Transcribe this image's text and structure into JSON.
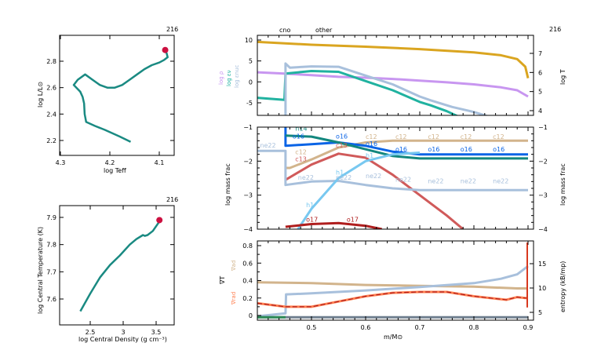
{
  "chart_data": [
    {
      "id": "hr",
      "type": "line",
      "title": "216",
      "xlabel": "log Teff",
      "ylabel": "log L/L_sun",
      "xlim": [
        4.3,
        4.05
      ],
      "ylim": [
        2.1,
        2.99
      ],
      "xticks": [
        "4.3",
        "4.2",
        "4.1"
      ],
      "xtick_values": [
        4.3,
        4.2,
        4.1
      ],
      "yticks": [
        "2.2",
        "2.4",
        "2.6",
        "2.8"
      ],
      "ytick_values": [
        2.2,
        2.4,
        2.6,
        2.8
      ],
      "color": "#1a8a82",
      "marker_color": "#cc1040",
      "series": [
        {
          "name": "track",
          "x": [
            4.158,
            4.18,
            4.21,
            4.23,
            4.248,
            4.251,
            4.252,
            4.255,
            4.26,
            4.273,
            4.265,
            4.25,
            4.235,
            4.22,
            4.205,
            4.19,
            4.175,
            4.16,
            4.145,
            4.13,
            4.115,
            4.1,
            4.09,
            4.083,
            4.085,
            4.088
          ],
          "y": [
            2.19,
            2.23,
            2.28,
            2.31,
            2.34,
            2.4,
            2.48,
            2.53,
            2.57,
            2.62,
            2.66,
            2.7,
            2.66,
            2.62,
            2.6,
            2.6,
            2.62,
            2.66,
            2.7,
            2.74,
            2.77,
            2.79,
            2.81,
            2.83,
            2.86,
            2.88
          ]
        }
      ],
      "marker": {
        "x": 4.088,
        "y": 2.885
      }
    },
    {
      "id": "center",
      "type": "line",
      "title": "216",
      "xlabel": "log Central Density (g cm^-3)",
      "ylabel": "log Central Temperature (K)",
      "xlim": [
        2.05,
        3.72
      ],
      "ylim": [
        7.51,
        7.94
      ],
      "xticks": [
        "2.5",
        "3",
        "3.5"
      ],
      "xtick_values": [
        2.5,
        3.0,
        3.5
      ],
      "yticks": [
        "7.6",
        "7.7",
        "7.8",
        "7.9"
      ],
      "ytick_values": [
        7.6,
        7.7,
        7.8,
        7.9
      ],
      "color": "#1a8a82",
      "marker_color": "#cc1040",
      "series": [
        {
          "name": "track",
          "x": [
            2.35,
            2.5,
            2.65,
            2.8,
            2.95,
            3.1,
            3.2,
            3.3,
            3.33,
            3.37,
            3.45,
            3.55
          ],
          "y": [
            7.555,
            7.62,
            7.68,
            7.725,
            7.76,
            7.8,
            7.82,
            7.835,
            7.832,
            7.835,
            7.85,
            7.885
          ]
        }
      ],
      "marker": {
        "x": 3.55,
        "y": 7.89
      }
    },
    {
      "id": "profile-top",
      "type": "line",
      "title": "216",
      "top_labels": [
        "cno",
        "other"
      ],
      "xlim": [
        0.4,
        0.9
      ],
      "ylim_left": [
        -8.2,
        11.2
      ],
      "ylim_right": [
        3.7,
        7.8
      ],
      "yticks_left": [
        "10",
        "5",
        "0",
        "-5"
      ],
      "ytick_values_left": [
        10,
        5,
        0,
        -5
      ],
      "yticks_right": [
        "7",
        "6",
        "5",
        "4"
      ],
      "ytick_values_right": [
        7,
        6,
        5,
        4
      ],
      "ylabels_left": [
        "log ρ",
        "log ε_ν",
        "log ε_nuc"
      ],
      "ylabel_right": "log T",
      "series": [
        {
          "name": "log T",
          "axis": "right",
          "color": "#daa520",
          "x": [
            0.4,
            0.5,
            0.6,
            0.7,
            0.8,
            0.85,
            0.88,
            0.895,
            0.9
          ],
          "y": [
            7.6,
            7.45,
            7.35,
            7.22,
            7.05,
            6.9,
            6.7,
            6.3,
            5.7
          ]
        },
        {
          "name": "log rho",
          "axis": "left",
          "color": "#c896f0",
          "x": [
            0.4,
            0.45,
            0.5,
            0.55,
            0.6,
            0.65,
            0.7,
            0.75,
            0.8,
            0.85,
            0.88,
            0.9
          ],
          "y": [
            2.3,
            2.0,
            1.6,
            1.2,
            1.0,
            0.7,
            0.3,
            -0.1,
            -0.6,
            -1.3,
            -2.0,
            -3.5
          ]
        },
        {
          "name": "log eps_nu",
          "axis": "left",
          "color": "#20b2a0",
          "x": [
            0.4,
            0.45,
            0.452,
            0.5,
            0.55,
            0.6,
            0.65,
            0.7,
            0.72,
            0.75,
            0.77
          ],
          "y": [
            -3.8,
            -4.3,
            2.0,
            2.6,
            2.4,
            0.2,
            -2.0,
            -4.8,
            -5.6,
            -7.0,
            -8.2
          ]
        },
        {
          "name": "log eps_nuc",
          "axis": "left",
          "color": "#a8c0dc",
          "x": [
            0.452,
            0.452,
            0.46,
            0.5,
            0.55,
            0.6,
            0.65,
            0.7,
            0.72,
            0.76,
            0.8,
            0.825
          ],
          "y": [
            -8.2,
            4.4,
            3.4,
            3.7,
            3.6,
            1.5,
            -0.6,
            -3.5,
            -4.4,
            -6.0,
            -7.2,
            -8.2
          ]
        }
      ]
    },
    {
      "id": "profile-mid",
      "type": "line",
      "xlim": [
        0.4,
        0.9
      ],
      "ylim": [
        -4,
        -1
      ],
      "yticks": [
        "-1",
        "-2",
        "-3",
        "-4"
      ],
      "ytick_values": [
        -1,
        -2,
        -3,
        -4
      ],
      "ylabel": "log mass frac",
      "series": [
        {
          "name": "c12",
          "color": "#d2b48c",
          "x": [
            0.452,
            0.46,
            0.5,
            0.55,
            0.6,
            0.65,
            0.9
          ],
          "y": [
            -2.2,
            -2.2,
            -1.95,
            -1.6,
            -1.45,
            -1.4,
            -1.4
          ]
        },
        {
          "name": "o16",
          "color": "#0a64e6",
          "x": [
            0.452,
            0.452,
            0.5,
            0.55,
            0.6,
            0.65,
            0.7,
            0.9
          ],
          "y": [
            -1.0,
            -1.55,
            -1.5,
            -1.45,
            -1.55,
            -1.72,
            -1.8,
            -1.8
          ]
        },
        {
          "name": "n14",
          "color": "#13877e",
          "x": [
            0.452,
            0.5,
            0.55,
            0.6,
            0.65,
            0.7,
            0.9
          ],
          "y": [
            -1.25,
            -1.28,
            -1.45,
            -1.65,
            -1.85,
            -1.92,
            -1.92
          ]
        },
        {
          "name": "c13",
          "color": "#d05a5a",
          "x": [
            0.452,
            0.5,
            0.55,
            0.6,
            0.65,
            0.7,
            0.75,
            0.78
          ],
          "y": [
            -2.55,
            -2.1,
            -1.78,
            -1.9,
            -2.4,
            -3.0,
            -3.6,
            -4.0
          ]
        },
        {
          "name": "ne22",
          "color": "#a8c0dc",
          "x": [
            0.4,
            0.452,
            0.452,
            0.5,
            0.55,
            0.6,
            0.65,
            0.7,
            0.9
          ],
          "y": [
            -1.7,
            -1.7,
            -2.7,
            -2.6,
            -2.58,
            -2.7,
            -2.8,
            -2.85,
            -2.85
          ]
        },
        {
          "name": "h1",
          "color": "#78c8f0",
          "x": [
            0.475,
            0.5,
            0.55,
            0.6,
            0.65,
            0.7
          ],
          "y": [
            -4.0,
            -3.4,
            -2.5,
            -2.0,
            -1.8,
            -1.75
          ]
        },
        {
          "name": "o17",
          "color": "#b01e1e",
          "x": [
            0.452,
            0.5,
            0.55,
            0.6,
            0.63
          ],
          "y": [
            -3.93,
            -3.85,
            -3.82,
            -3.9,
            -4.0
          ]
        }
      ],
      "annotations": [
        {
          "text": "n14",
          "x": 0.47,
          "y": -1.1,
          "color": "#13877e"
        },
        {
          "text": "o16",
          "x": 0.465,
          "y": -1.33,
          "color": "#0a64e6"
        },
        {
          "text": "ne22",
          "x": 0.405,
          "y": -1.6,
          "color": "#a8c0dc"
        },
        {
          "text": "c12",
          "x": 0.47,
          "y": -1.8,
          "color": "#d2b48c"
        },
        {
          "text": "c13",
          "x": 0.47,
          "y": -2.0,
          "color": "#d05a5a"
        },
        {
          "text": "ne22",
          "x": 0.475,
          "y": -2.55,
          "color": "#a8c0dc"
        },
        {
          "text": "o16",
          "x": 0.545,
          "y": -1.33,
          "color": "#0a64e6"
        },
        {
          "text": "c13",
          "x": 0.545,
          "y": -1.6,
          "color": "#d05a5a"
        },
        {
          "text": "h1",
          "x": 0.545,
          "y": -2.4,
          "color": "#78c8f0"
        },
        {
          "text": "ne22",
          "x": 0.545,
          "y": -2.55,
          "color": "#a8c0dc"
        },
        {
          "text": "h1",
          "x": 0.49,
          "y": -3.35,
          "color": "#78c8f0"
        },
        {
          "text": "o17",
          "x": 0.49,
          "y": -3.78,
          "color": "#b01e1e"
        },
        {
          "text": "o17",
          "x": 0.565,
          "y": -3.78,
          "color": "#b01e1e"
        },
        {
          "text": "c12",
          "x": 0.6,
          "y": -1.35,
          "color": "#d2b48c"
        },
        {
          "text": "o16",
          "x": 0.6,
          "y": -1.55,
          "color": "#0a64e6"
        },
        {
          "text": "h1",
          "x": 0.6,
          "y": -1.9,
          "color": "#78c8f0"
        },
        {
          "text": "ne22",
          "x": 0.6,
          "y": -2.5,
          "color": "#a8c0dc"
        },
        {
          "text": "c12",
          "x": 0.655,
          "y": -1.35,
          "color": "#d2b48c"
        },
        {
          "text": "o16",
          "x": 0.655,
          "y": -1.72,
          "color": "#0a64e6"
        },
        {
          "text": "ne22",
          "x": 0.655,
          "y": -2.6,
          "color": "#a8c0dc"
        },
        {
          "text": "c12",
          "x": 0.715,
          "y": -1.35,
          "color": "#d2b48c"
        },
        {
          "text": "o16",
          "x": 0.715,
          "y": -1.72,
          "color": "#0a64e6"
        },
        {
          "text": "ne22",
          "x": 0.715,
          "y": -2.65,
          "color": "#a8c0dc"
        },
        {
          "text": "c12",
          "x": 0.775,
          "y": -1.35,
          "color": "#d2b48c"
        },
        {
          "text": "o16",
          "x": 0.775,
          "y": -1.72,
          "color": "#0a64e6"
        },
        {
          "text": "ne22",
          "x": 0.775,
          "y": -2.65,
          "color": "#a8c0dc"
        },
        {
          "text": "c12",
          "x": 0.835,
          "y": -1.35,
          "color": "#d2b48c"
        },
        {
          "text": "o16",
          "x": 0.835,
          "y": -1.72,
          "color": "#0a64e6"
        },
        {
          "text": "ne22",
          "x": 0.835,
          "y": -2.65,
          "color": "#a8c0dc"
        }
      ]
    },
    {
      "id": "profile-bottom",
      "type": "line",
      "xlim": [
        0.4,
        0.9
      ],
      "ylim_left": [
        -0.03,
        0.85
      ],
      "ylim_right": [
        3.5,
        19.5
      ],
      "yticks_left": [
        "0.8",
        "0.6",
        "0.4",
        "0.2",
        "0"
      ],
      "ytick_values_left": [
        0.8,
        0.6,
        0.4,
        0.2,
        0
      ],
      "yticks_right": [
        "15",
        "10",
        "5"
      ],
      "ytick_values_right": [
        15,
        10,
        5
      ],
      "xticks": [
        "0.5",
        "0.6",
        "0.7",
        "0.8",
        "0.9"
      ],
      "xtick_values": [
        0.5,
        0.6,
        0.7,
        0.8,
        0.9
      ],
      "xlabel": "m/M_sun",
      "ylabels_left": [
        "∇_ad",
        "∇_T",
        "∇_rad"
      ],
      "ylabel_right": "entropy (k_B/m_p)",
      "series": [
        {
          "name": "grad_ad",
          "axis": "left",
          "color": "#d2b48c",
          "x": [
            0.4,
            0.5,
            0.6,
            0.7,
            0.8,
            0.88,
            0.9
          ],
          "y": [
            0.38,
            0.37,
            0.35,
            0.34,
            0.33,
            0.31,
            0.31
          ]
        },
        {
          "name": "entropy",
          "axis": "right",
          "color": "#a8c0dc",
          "x": [
            0.4,
            0.452,
            0.453,
            0.5,
            0.6,
            0.7,
            0.8,
            0.85,
            0.88,
            0.9
          ],
          "y": [
            4.2,
            4.8,
            8.7,
            8.9,
            9.5,
            10.2,
            11.0,
            11.9,
            12.8,
            14.5
          ]
        },
        {
          "name": "grad_rad",
          "axis": "left",
          "color": "#ff7f50",
          "x": [
            0.4,
            0.452,
            0.5,
            0.55,
            0.6,
            0.65,
            0.7,
            0.75,
            0.8,
            0.86,
            0.88,
            0.895,
            0.9
          ],
          "y": [
            0.14,
            0.1,
            0.1,
            0.16,
            0.22,
            0.26,
            0.27,
            0.27,
            0.22,
            0.18,
            0.21,
            0.2,
            0.2
          ]
        },
        {
          "name": "grad_T",
          "axis": "left",
          "color": "#b01e1e",
          "dashed": true,
          "x": [
            0.4,
            0.452,
            0.5,
            0.55,
            0.6,
            0.65,
            0.7,
            0.75,
            0.8,
            0.86,
            0.88,
            0.895,
            0.9
          ],
          "y": [
            0.14,
            0.1,
            0.1,
            0.16,
            0.22,
            0.26,
            0.27,
            0.27,
            0.22,
            0.18,
            0.21,
            0.2,
            0.2
          ]
        },
        {
          "name": "baseline",
          "axis": "left",
          "color": "#708090",
          "x": [
            0.4,
            0.9
          ],
          "y": [
            -0.02,
            -0.02
          ]
        },
        {
          "name": "baseline-core",
          "axis": "left",
          "color": "#2e8b57",
          "x": [
            0.4,
            0.452
          ],
          "y": [
            -0.02,
            -0.02
          ]
        }
      ]
    }
  ],
  "labels": {
    "hr_title": "216",
    "center_title": "216",
    "profile_title": "216",
    "cno": "cno",
    "other": "other",
    "log_rho": "log ρ",
    "log_eps_nu": "log εν",
    "log_eps_nuc": "log εnuc",
    "log_T": "log T",
    "log_mass_frac": "log mass frac",
    "nabla_ad": "∇ad",
    "nabla_T": "∇T",
    "nabla_rad": "∇rad",
    "entropy": "entropy (kB/mp)",
    "xlabel": "m/M⊙",
    "hr_xlabel": "log Teff",
    "hr_ylabel": "log L/L⊙",
    "center_xlabel": "log Central Density (g cm⁻³)",
    "center_ylabel": "log Central Temperature (K)"
  }
}
